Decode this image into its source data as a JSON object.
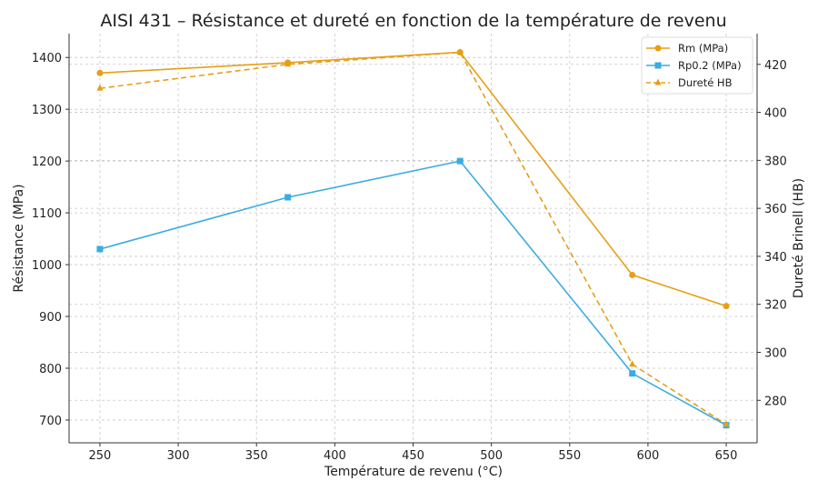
{
  "chart_data": {
    "type": "line",
    "title": "AISI 431 – Résistance et dureté en fonction de la température de revenu",
    "xlabel": "Température de revenu (°C)",
    "ylabel": "Résistance (MPa)",
    "y2label": "Dureté Brinell (HB)",
    "x": [
      250,
      370,
      480,
      590,
      650
    ],
    "xlim": [
      230.3,
      669.7
    ],
    "ylim": [
      656,
      1446
    ],
    "y2lim": [
      262.3,
      432.8
    ],
    "xticks": [
      250,
      300,
      350,
      400,
      450,
      500,
      550,
      600,
      650
    ],
    "yticks": [
      700,
      800,
      900,
      1000,
      1100,
      1200,
      1300,
      1400
    ],
    "y2ticks": [
      280,
      300,
      320,
      340,
      360,
      380,
      400,
      420
    ],
    "grid": true,
    "legend_position": "top-right",
    "series": [
      {
        "name": "Rm (MPa)",
        "axis": "left",
        "values": [
          1370,
          1390,
          1410,
          980,
          920
        ],
        "color": "#E69F16",
        "marker": "circle",
        "dash": false
      },
      {
        "name": "Rp0.2 (MPa)",
        "axis": "left",
        "values": [
          1030,
          1130,
          1200,
          790,
          690
        ],
        "color": "#3AACE0",
        "marker": "square",
        "dash": false
      },
      {
        "name": "Dureté HB",
        "axis": "right",
        "values": [
          410,
          420,
          425,
          295,
          270
        ],
        "color": "#E69F16",
        "marker": "triangle",
        "dash": true
      }
    ]
  }
}
